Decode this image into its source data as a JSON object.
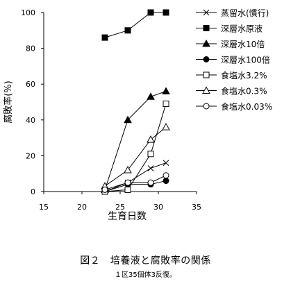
{
  "chart_data": {
    "type": "line",
    "title": "",
    "xlabel": "生育日数",
    "ylabel": "腐敗率(%)",
    "xlim": [
      15,
      35
    ],
    "ylim": [
      0,
      100
    ],
    "xticks": [
      15,
      20,
      25,
      30,
      35
    ],
    "yticks": [
      0,
      20,
      40,
      60,
      80,
      100
    ],
    "grid": false,
    "legend_position": "right",
    "series": [
      {
        "name": "蒸留水(慣行)",
        "marker": "x",
        "fill": "none",
        "points": [
          [
            23,
            0
          ],
          [
            26,
            5
          ],
          [
            29,
            13
          ],
          [
            31,
            16
          ]
        ]
      },
      {
        "name": "深層水原液",
        "marker": "square",
        "fill": "solid",
        "points": [
          [
            23,
            86
          ],
          [
            26,
            90
          ],
          [
            29,
            100
          ],
          [
            31,
            100
          ]
        ]
      },
      {
        "name": "深層水10倍",
        "marker": "triangle",
        "fill": "solid",
        "points": [
          [
            23,
            1
          ],
          [
            26,
            40
          ],
          [
            29,
            53
          ],
          [
            31,
            56
          ]
        ]
      },
      {
        "name": "深層水100倍",
        "marker": "circle",
        "fill": "solid",
        "points": [
          [
            23,
            0
          ],
          [
            26,
            4
          ],
          [
            29,
            4
          ],
          [
            31,
            6
          ]
        ]
      },
      {
        "name": "食塩水3.2%",
        "marker": "square",
        "fill": "open",
        "points": [
          [
            23,
            0
          ],
          [
            26,
            1
          ],
          [
            29,
            21
          ],
          [
            31,
            49
          ]
        ]
      },
      {
        "name": "食塩水0.3%",
        "marker": "triangle",
        "fill": "open",
        "points": [
          [
            23,
            3
          ],
          [
            26,
            12
          ],
          [
            29,
            29
          ],
          [
            31,
            36
          ]
        ]
      },
      {
        "name": "食塩水0.03%",
        "marker": "circle",
        "fill": "open",
        "points": [
          [
            23,
            1
          ],
          [
            26,
            5
          ],
          [
            29,
            5
          ],
          [
            31,
            9
          ]
        ]
      }
    ]
  },
  "figure": {
    "title": "図２　培養液と腐敗率の関係",
    "note": "１区35個体3反復。"
  }
}
